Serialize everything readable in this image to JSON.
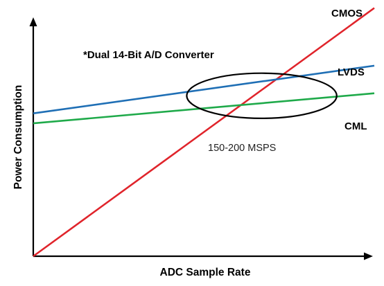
{
  "chart_data": {
    "type": "line",
    "title": "*Dual 14-Bit A/D Converter",
    "xlabel": "ADC Sample Rate",
    "ylabel": "Power Consumption",
    "xlim": [
      0,
      100
    ],
    "ylim": [
      0,
      100
    ],
    "grid": false,
    "legend": "inline-right",
    "series": [
      {
        "name": "CMOS",
        "color": "#e0242b",
        "x": [
          0,
          100
        ],
        "y": [
          0,
          99
        ]
      },
      {
        "name": "LVDS",
        "color": "#1f6fb5",
        "x": [
          0,
          100
        ],
        "y": [
          57,
          76
        ]
      },
      {
        "name": "CML",
        "color": "#1faa4a",
        "x": [
          0,
          100
        ],
        "y": [
          53,
          65
        ]
      }
    ],
    "annotations": [
      {
        "text": "150-200 MSPS",
        "shape": "ellipse",
        "center": [
          67,
          64
        ],
        "radius": [
          22,
          9
        ]
      }
    ]
  }
}
